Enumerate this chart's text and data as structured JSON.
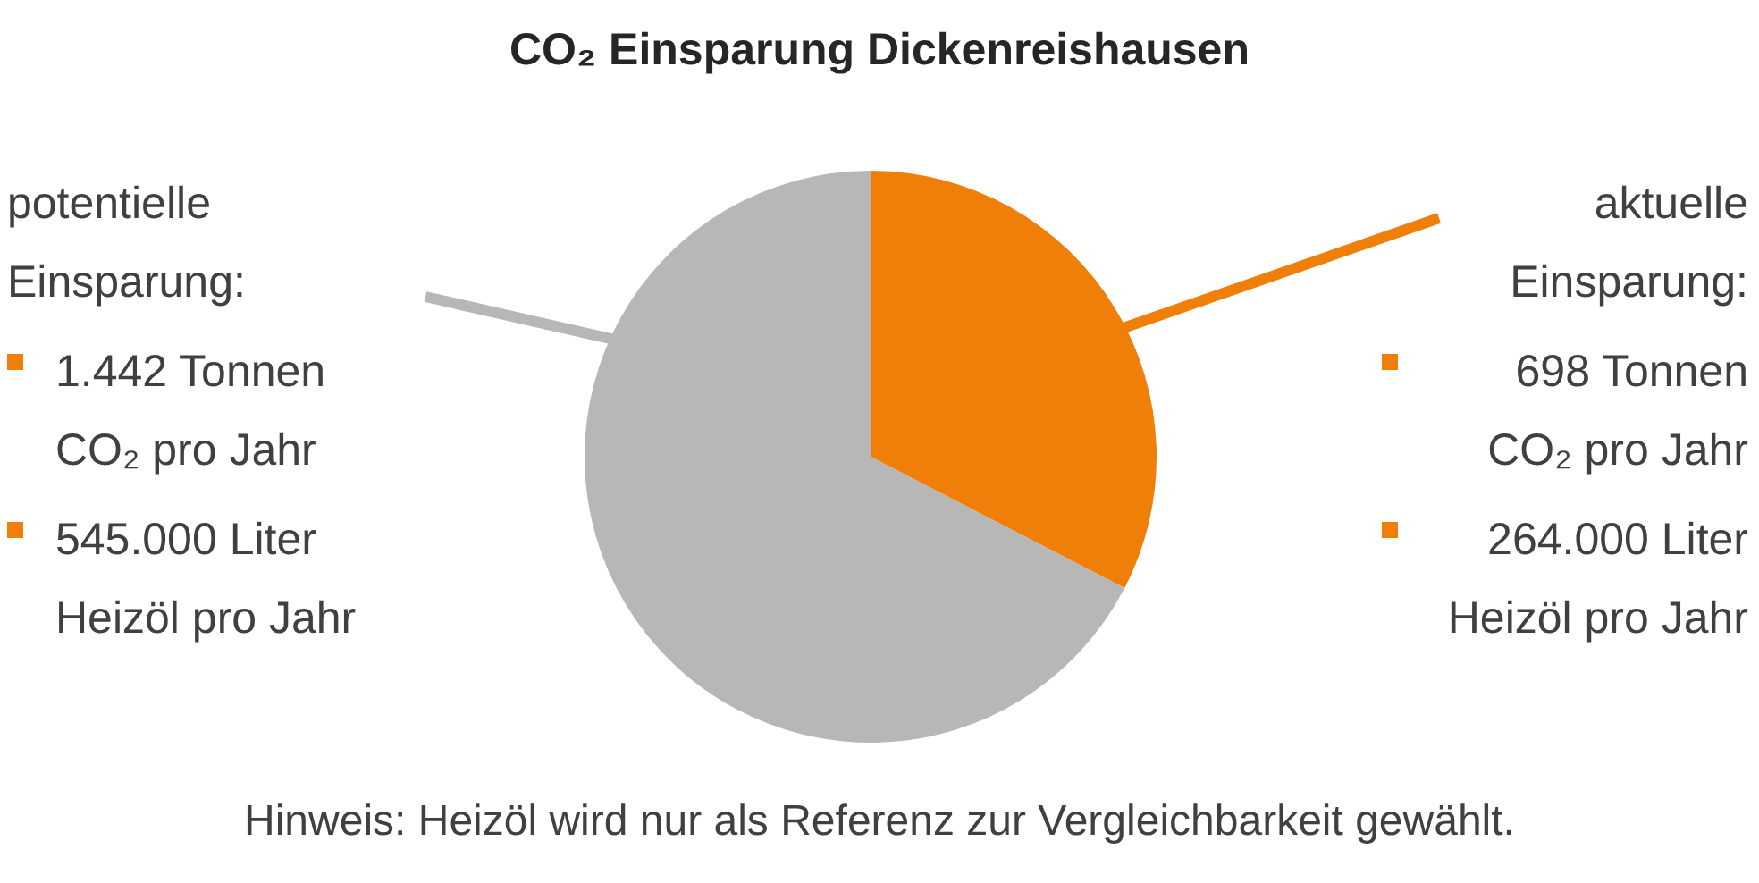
{
  "chart_data": {
    "type": "pie",
    "title": "CO₂ Einsparung Dickenreishausen",
    "categories": [
      null,
      null
    ],
    "values": [
      32.6,
      67.4
    ],
    "colors": [
      "#f07f09",
      "#b8b7b8"
    ],
    "legend": false,
    "annotations": [
      "aktuelle Einsparung:",
      "potentielle Einsparung:",
      "698 Tonnen CO₂ pro Jahr",
      "264.000 Liter Heizöl pro Jahr",
      "1.442 Tonnen CO₂ pro Jahr",
      "545.000 Liter Heizöl pro Jahr",
      "Hinweis: Heizöl wird nur als Referenz zur Vergleichbarkeit gewählt."
    ]
  }
}
